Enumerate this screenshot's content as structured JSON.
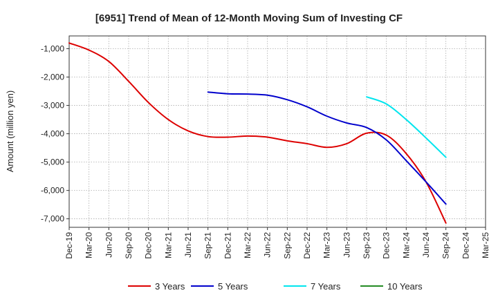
{
  "chart_data": {
    "type": "line",
    "title": "[6951]  Trend of Mean of 12-Month Moving Sum of Investing CF",
    "xlabel": "",
    "ylabel": "Amount (million yen)",
    "ylim": [
      -7300,
      -550
    ],
    "yticks": [
      -1000,
      -2000,
      -3000,
      -4000,
      -5000,
      -6000,
      -7000
    ],
    "ytick_labels": [
      "-1,000",
      "-2,000",
      "-3,000",
      "-4,000",
      "-5,000",
      "-6,000",
      "-7,000"
    ],
    "xticks": [
      "Dec-19",
      "Mar-20",
      "Jun-20",
      "Sep-20",
      "Dec-20",
      "Mar-21",
      "Jun-21",
      "Sep-21",
      "Dec-21",
      "Mar-22",
      "Jun-22",
      "Sep-22",
      "Dec-22",
      "Mar-23",
      "Jun-23",
      "Sep-23",
      "Dec-23",
      "Mar-24",
      "Jun-24",
      "Sep-24",
      "Dec-24",
      "Mar-25"
    ],
    "grid": true,
    "legend_position": "bottom",
    "series": [
      {
        "name": "3 Years",
        "color": "#dd0000",
        "start_index": 0,
        "values": [
          -800,
          -1050,
          -1450,
          -2150,
          -2900,
          -3500,
          -3900,
          -4100,
          -4120,
          -4080,
          -4120,
          -4250,
          -4350,
          -4480,
          -4350,
          -3980,
          -4050,
          -4700,
          -5700,
          -7150
        ]
      },
      {
        "name": "5 Years",
        "color": "#0000cc",
        "start_index": 7,
        "values": [
          -2530,
          -2590,
          -2600,
          -2640,
          -2800,
          -3050,
          -3380,
          -3620,
          -3780,
          -4220,
          -4950,
          -5700,
          -6480
        ]
      },
      {
        "name": "7 Years",
        "color": "#00e5ee",
        "start_index": 15,
        "values": [
          -2700,
          -2950,
          -3500,
          -4150,
          -4830
        ]
      },
      {
        "name": "10 Years",
        "color": "#228b22",
        "start_index": 0,
        "values": []
      }
    ]
  }
}
